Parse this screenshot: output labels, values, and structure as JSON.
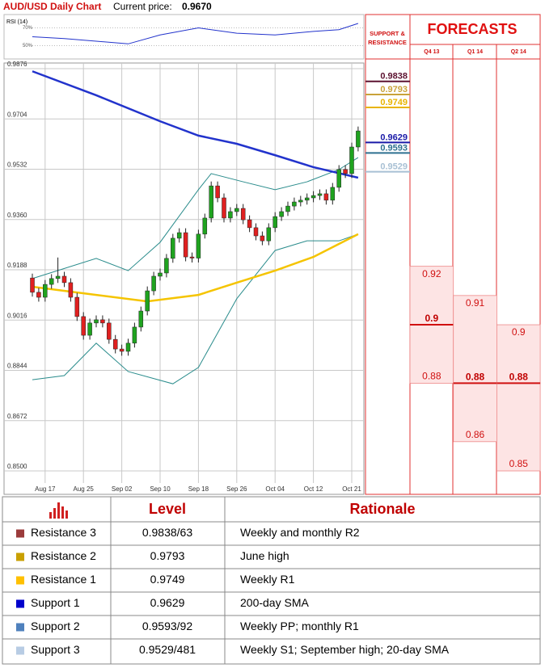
{
  "header": {
    "title": "AUD/USD Daily Chart",
    "price_label": "Current price:",
    "price": "0.9670"
  },
  "chart_data": {
    "type": "candlestick",
    "categories": [
      null,
      null,
      "Aug 17",
      null,
      null,
      null,
      null,
      null,
      "Aug 25",
      null,
      null,
      null,
      null,
      null,
      "Sep 02",
      null,
      null,
      null,
      null,
      null,
      "Sep 10",
      null,
      null,
      null,
      null,
      null,
      "Sep 18",
      null,
      null,
      null,
      null,
      null,
      "Sep 26",
      null,
      null,
      null,
      null,
      null,
      "Oct 04",
      null,
      null,
      null,
      null,
      null,
      "Oct 12",
      null,
      null,
      null,
      null,
      null,
      "Oct 21",
      null
    ],
    "open": [
      0.916,
      0.9111,
      0.9094,
      0.9138,
      0.9158,
      0.9166,
      0.9144,
      0.9094,
      0.9028,
      0.8964,
      0.9006,
      0.9017,
      0.9006,
      0.895,
      0.8917,
      0.8909,
      0.8937,
      0.8992,
      0.9047,
      0.9116,
      0.9166,
      0.9177,
      0.9227,
      0.9296,
      0.9315,
      0.9232,
      0.9228,
      0.931,
      0.9365,
      0.9475,
      0.9434,
      0.9365,
      0.9387,
      0.9398,
      0.9359,
      0.9332,
      0.9304,
      0.9287,
      0.9332,
      0.937,
      0.9387,
      0.9406,
      0.942,
      0.9426,
      0.9434,
      0.9442,
      0.9448,
      0.9426,
      0.947,
      0.9531,
      0.9517,
      0.9608
    ],
    "high": [
      0.9175,
      0.9126,
      0.9153,
      0.9173,
      0.923,
      0.9181,
      0.9159,
      0.9109,
      0.9043,
      0.9021,
      0.9032,
      0.9032,
      0.9021,
      0.8965,
      0.8932,
      0.8952,
      0.9007,
      0.9062,
      0.9131,
      0.9181,
      0.9192,
      0.9242,
      0.9311,
      0.933,
      0.933,
      0.9247,
      0.9325,
      0.938,
      0.949,
      0.949,
      0.9449,
      0.9402,
      0.9413,
      0.9413,
      0.9374,
      0.9347,
      0.9319,
      0.9347,
      0.9385,
      0.9402,
      0.9421,
      0.9435,
      0.9441,
      0.9449,
      0.9457,
      0.9463,
      0.9463,
      0.9485,
      0.9546,
      0.9546,
      0.9623,
      0.9678
    ],
    "low": [
      0.9096,
      0.9079,
      0.9079,
      0.9123,
      0.9143,
      0.9129,
      0.9079,
      0.9013,
      0.8949,
      0.8949,
      0.8991,
      0.8991,
      0.8935,
      0.8902,
      0.8894,
      0.8894,
      0.8922,
      0.8977,
      0.9032,
      0.9101,
      0.9151,
      0.9162,
      0.9212,
      0.9281,
      0.9217,
      0.9213,
      0.9213,
      0.9295,
      0.935,
      0.9419,
      0.935,
      0.935,
      0.9372,
      0.9344,
      0.9317,
      0.9289,
      0.9272,
      0.9272,
      0.9317,
      0.9355,
      0.9372,
      0.9391,
      0.9405,
      0.9411,
      0.9419,
      0.9427,
      0.9411,
      0.9411,
      0.9455,
      0.9502,
      0.9502,
      0.9593
    ],
    "close": [
      0.9111,
      0.9094,
      0.9138,
      0.9158,
      0.9166,
      0.9144,
      0.9094,
      0.9028,
      0.8964,
      0.9006,
      0.9017,
      0.9006,
      0.895,
      0.8917,
      0.8909,
      0.8937,
      0.8992,
      0.9047,
      0.9116,
      0.9166,
      0.9177,
      0.9227,
      0.9296,
      0.9315,
      0.9232,
      0.9228,
      0.931,
      0.9365,
      0.9475,
      0.9434,
      0.9365,
      0.9387,
      0.9398,
      0.9359,
      0.9332,
      0.9304,
      0.9287,
      0.9332,
      0.937,
      0.9387,
      0.9406,
      0.942,
      0.9426,
      0.9434,
      0.9442,
      0.9448,
      0.9426,
      0.947,
      0.9531,
      0.9517,
      0.9608,
      0.9663
    ],
    "up_color": "#1fa31f",
    "down_color": "#e02020",
    "overlays": [
      {
        "color": "#2a8c8c",
        "width": 1,
        "x": [
          0,
          10,
          15,
          20,
          26,
          28,
          33,
          38,
          43,
          48,
          51
        ],
        "values": [
          0.9158,
          0.9227,
          0.9185,
          0.9282,
          0.9462,
          0.9517,
          0.9489,
          0.9462,
          0.9489,
          0.9531,
          0.9572
        ]
      },
      {
        "color": "#2a8c8c",
        "width": 1,
        "x": [
          0,
          5,
          10,
          15,
          22,
          26,
          32,
          38,
          43,
          48,
          51
        ],
        "values": [
          0.8812,
          0.8826,
          0.8937,
          0.884,
          0.8798,
          0.8854,
          0.9089,
          0.9254,
          0.9287,
          0.9287,
          0.931
        ]
      },
      {
        "color": "#f5c400",
        "width": 2.5,
        "x": [
          0,
          10,
          18,
          26,
          32,
          38,
          44,
          51
        ],
        "values": [
          0.913,
          0.9102,
          0.908,
          0.9102,
          0.9144,
          0.9185,
          0.9232,
          0.931
        ]
      },
      {
        "color": "#2233cc",
        "width": 2.5,
        "x": [
          0,
          10,
          20,
          26,
          32,
          38,
          44,
          51
        ],
        "values": [
          0.9867,
          0.9785,
          0.9696,
          0.9647,
          0.9619,
          0.958,
          0.9539,
          0.9503
        ]
      }
    ],
    "ylim": [
      0.85,
      0.9876
    ],
    "yticks": [
      {
        "value": 0.85,
        "label": "0.8500"
      },
      {
        "value": 0.8672,
        "label": "0.8672"
      },
      {
        "value": 0.8844,
        "label": "0.8844"
      },
      {
        "value": 0.9016,
        "label": "0.9016"
      },
      {
        "value": 0.9188,
        "label": "0.9188"
      },
      {
        "value": 0.936,
        "label": "0.9360"
      },
      {
        "value": 0.9532,
        "label": "0.9532"
      },
      {
        "value": 0.9704,
        "label": "0.9704"
      },
      {
        "value": 0.9876,
        "label": "0.9876"
      }
    ],
    "grid": true,
    "levels": [
      {
        "value": 0.9838,
        "color": "#5c1230"
      },
      {
        "value": 0.9793,
        "color": "#c9a23a"
      },
      {
        "value": 0.9749,
        "color": "#e8b400"
      },
      {
        "value": 0.9629,
        "color": "#1a1aa8"
      },
      {
        "value": 0.9593,
        "color": "#2e7090"
      },
      {
        "value": 0.9529,
        "color": "#a8c0d4"
      }
    ],
    "rsi": {
      "label": "RSI (14)",
      "ylim": [
        35,
        85
      ],
      "yticks": [
        {
          "value": 70,
          "label": "70%"
        },
        {
          "value": 50,
          "label": "50%"
        }
      ],
      "color": "#2233cc",
      "x": [
        0,
        5,
        10,
        15,
        20,
        26,
        32,
        38,
        44,
        48,
        51
      ],
      "values": [
        60,
        58,
        55,
        52,
        62,
        70,
        64,
        62,
        66,
        68,
        75
      ]
    }
  },
  "forecasts": {
    "sr_title": [
      "SUPPORT &",
      "RESISTANCE"
    ],
    "title": "FORECASTS",
    "columns": [
      {
        "label": "Q4 13",
        "high": 0.92,
        "median": 0.9,
        "low": 0.88
      },
      {
        "label": "Q1 14",
        "high": 0.91,
        "median": 0.88,
        "low": 0.86
      },
      {
        "label": "Q2 14",
        "high": 0.9,
        "median": 0.88,
        "low": 0.85
      }
    ]
  },
  "table": {
    "headers": [
      "Level",
      "Rationale"
    ],
    "rows": [
      {
        "name": "Resistance 3",
        "color": "#9b3b3b",
        "level": "0.9838/63",
        "rationale": "Weekly and monthly R2"
      },
      {
        "name": "Resistance 2",
        "color": "#c9a000",
        "level": "0.9793",
        "rationale": "June high"
      },
      {
        "name": "Resistance 1",
        "color": "#ffc000",
        "level": "0.9749",
        "rationale": "Weekly R1"
      },
      {
        "name": "Support 1",
        "color": "#0000cc",
        "level": "0.9629",
        "rationale": "200-day SMA"
      },
      {
        "name": "Support 2",
        "color": "#4f81bd",
        "level": "0.9593/92",
        "rationale": "Weekly PP; monthly R1"
      },
      {
        "name": "Support 3",
        "color": "#b8cce4",
        "level": "0.9529/481",
        "rationale": "Weekly S1; September high; 20-day SMA"
      }
    ]
  }
}
